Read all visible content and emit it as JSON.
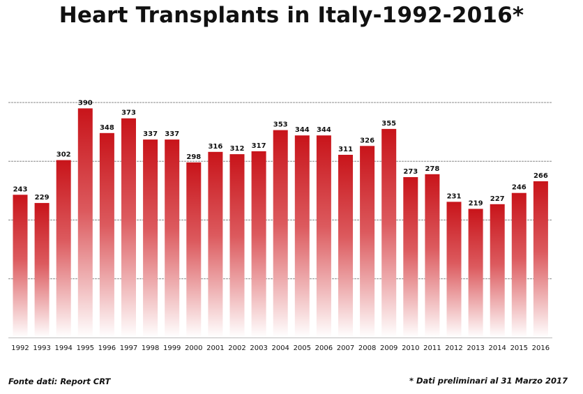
{
  "title": "Heart Transplants in Italy-1992-2016*",
  "source_note": "Fonte dati: Report CRT",
  "footnote": "* Dati  preliminari al 31 Marzo 2017",
  "colors": {
    "bar_top": "#c8141a",
    "bar_bottom": "#ffffff",
    "grid": "#888888"
  },
  "chart_data": {
    "type": "bar",
    "categories": [
      "1992",
      "1993",
      "1994",
      "1995",
      "1996",
      "1997",
      "1998",
      "1999",
      "2000",
      "2001",
      "2002",
      "2003",
      "2004",
      "2005",
      "2006",
      "2007",
      "2008",
      "2009",
      "2010",
      "2011",
      "2012",
      "2013",
      "2014",
      "2015",
      "2016"
    ],
    "values": [
      243,
      229,
      302,
      390,
      348,
      373,
      337,
      337,
      298,
      316,
      312,
      317,
      353,
      344,
      344,
      311,
      326,
      355,
      273,
      278,
      231,
      219,
      227,
      246,
      266
    ],
    "ylim": [
      0,
      400
    ],
    "gridlines": [
      100,
      200,
      300,
      400
    ],
    "data_labels": true,
    "legend": "none",
    "xlabel": "",
    "ylabel": ""
  }
}
